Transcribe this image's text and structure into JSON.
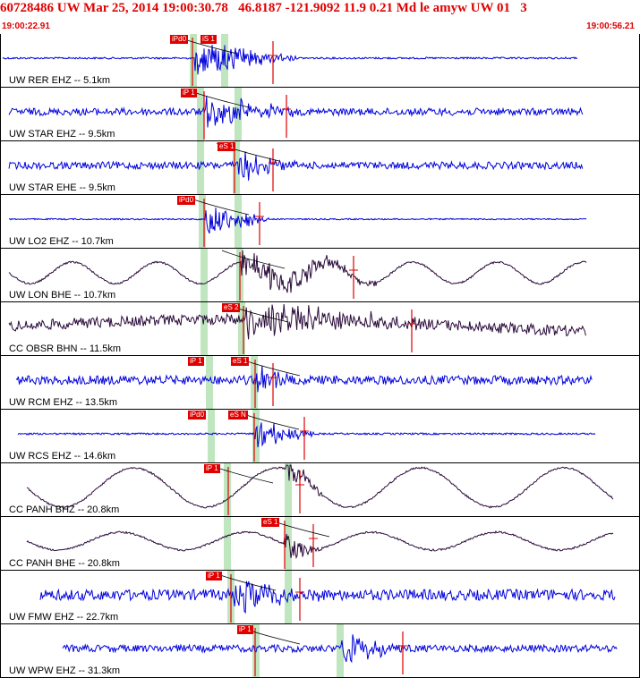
{
  "header": {
    "title": "60728486 UW Mar 25, 2014 19:00:30.78   46.8187 -121.9092 11.9 0.21 Md le amyw UW 01   3",
    "time_start": "19:00:22.91",
    "time_end": "19:00:56.21"
  },
  "colors": {
    "header_red": "#e00000",
    "trace_blue": "#0000dd",
    "trace_purple": "#2a0a3a",
    "pick_red": "#e00000",
    "band_green": "#bfe6bf"
  },
  "traces": [
    {
      "label": "UW RER EHZ -- 5.1km",
      "picks": [
        "iPd0",
        "iS 1"
      ]
    },
    {
      "label": "UW STAR EHZ -- 9.5km",
      "picks": [
        "iP 1"
      ]
    },
    {
      "label": "UW STAR EHE -- 9.5km",
      "picks": [
        "eS 1"
      ]
    },
    {
      "label": "UW LO2 EHZ -- 10.7km",
      "picks": [
        "iPd0"
      ]
    },
    {
      "label": "UW LON BHE -- 10.7km",
      "picks": []
    },
    {
      "label": "CC OBSR BHN -- 11.5km",
      "picks": [
        "eS 2"
      ]
    },
    {
      "label": "UW RCM EHZ -- 13.5km",
      "picks": [
        "iP 1",
        "eS 1"
      ]
    },
    {
      "label": "UW RCS EHZ -- 14.6km",
      "picks": [
        "iPd0",
        "eS N"
      ]
    },
    {
      "label": "CC PANH BHZ -- 20.8km",
      "picks": [
        "iP 1"
      ]
    },
    {
      "label": "CC PANH BHE -- 20.8km",
      "picks": [
        "eS 1"
      ]
    },
    {
      "label": "UW FMW EHZ -- 22.7km",
      "picks": [
        "iP 1"
      ]
    },
    {
      "label": "UW WPW EHZ -- 31.3km",
      "picks": [
        "iP 1"
      ]
    }
  ]
}
